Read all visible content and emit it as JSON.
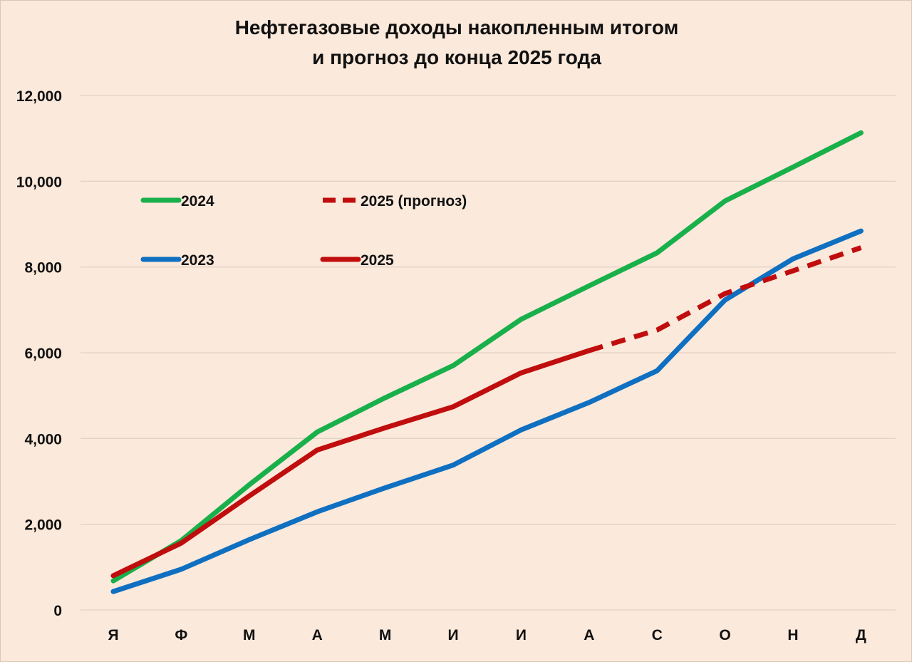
{
  "chart_data": {
    "type": "line",
    "title": [
      "Нефтегазовые доходы накопленным итогом",
      "и прогноз до конца 2025 года"
    ],
    "xlabel": "",
    "ylabel": "",
    "categories": [
      "Я",
      "Ф",
      "М",
      "А",
      "М",
      "И",
      "И",
      "А",
      "С",
      "О",
      "Н",
      "Д"
    ],
    "ylim": [
      0,
      12000
    ],
    "yticks": [
      0,
      2000,
      4000,
      6000,
      8000,
      10000,
      12000
    ],
    "ytick_labels": [
      "0",
      "2,000",
      "4,000",
      "6,000",
      "8,000",
      "10,000",
      "12,000"
    ],
    "grid": true,
    "series": [
      {
        "name": "2024",
        "color": "#19b04b",
        "dash": false,
        "values": [
          680,
          1620,
          2920,
          4150,
          4950,
          5700,
          6780,
          7560,
          8330,
          9540,
          10330,
          11130
        ]
      },
      {
        "name": "2023",
        "color": "#0f6fc0",
        "dash": false,
        "values": [
          430,
          950,
          1640,
          2290,
          2850,
          3380,
          4200,
          4840,
          5580,
          7230,
          8190,
          8840
        ]
      },
      {
        "name": "2025",
        "color": "#c00d0d",
        "dash": false,
        "values": [
          800,
          1560,
          2660,
          3730,
          4250,
          4740,
          5530,
          6050,
          null,
          null,
          null,
          null
        ]
      },
      {
        "name": "2025 (прогноз)",
        "color": "#c00d0d",
        "dash": true,
        "values": [
          null,
          null,
          null,
          null,
          null,
          null,
          null,
          6050,
          6530,
          7380,
          7910,
          8450
        ]
      }
    ],
    "legend": {
      "placement": "upper-left, inside plot",
      "order": [
        "2024",
        "2025 (прогноз)",
        "2023",
        "2025"
      ]
    }
  }
}
